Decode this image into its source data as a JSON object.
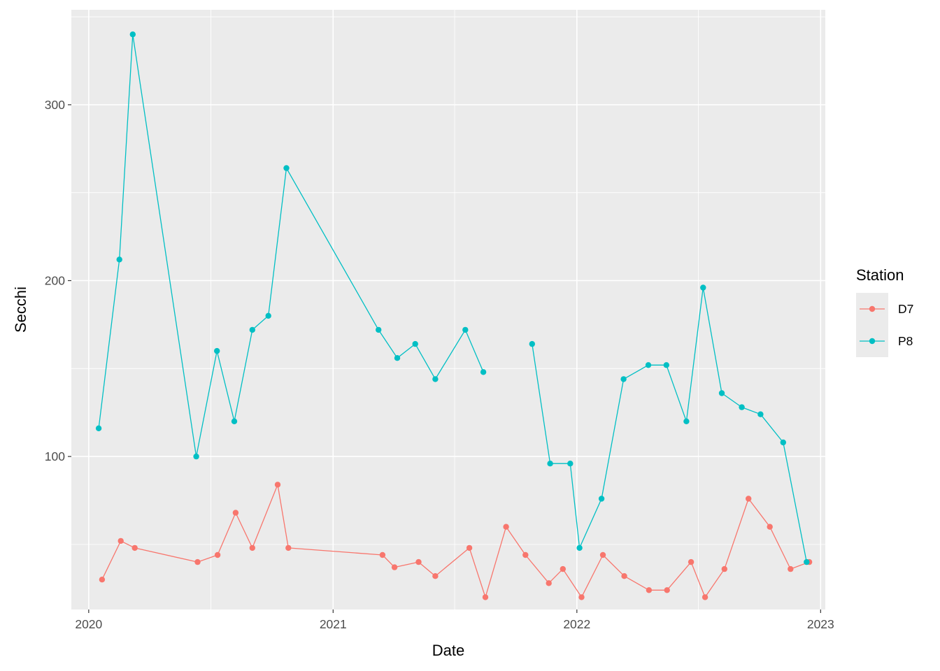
{
  "chart_data": {
    "type": "line",
    "title": "",
    "xlabel": "Date",
    "ylabel": "Secchi",
    "x_ticks": [
      "2020",
      "2021",
      "2022",
      "2023"
    ],
    "y_ticks": [
      100,
      200,
      300
    ],
    "xlim": [
      "2019-12-06",
      "2023-01-08"
    ],
    "ylim": [
      13,
      354
    ],
    "grid": true,
    "legend": {
      "title": "Station",
      "position": "right"
    },
    "series": [
      {
        "name": "D7",
        "color": "#F8766D",
        "points": [
          [
            "2020-01-21",
            30
          ],
          [
            "2020-02-18",
            52
          ],
          [
            "2020-03-10",
            48
          ],
          [
            "2020-06-12",
            40
          ],
          [
            "2020-07-12",
            44
          ],
          [
            "2020-08-08",
            68
          ],
          [
            "2020-09-02",
            48
          ],
          [
            "2020-10-10",
            84
          ],
          [
            "2020-10-26",
            48
          ],
          [
            "2021-03-16",
            44
          ],
          [
            "2021-04-03",
            37
          ],
          [
            "2021-05-09",
            40
          ],
          [
            "2021-06-03",
            32
          ],
          [
            "2021-07-24",
            48
          ],
          [
            "2021-08-17",
            20
          ],
          [
            "2021-09-17",
            60
          ],
          [
            "2021-10-16",
            44
          ],
          [
            "2021-11-20",
            28
          ],
          [
            "2021-12-11",
            36
          ],
          [
            "2022-01-08",
            20
          ],
          [
            "2022-02-09",
            44
          ],
          [
            "2022-03-13",
            32
          ],
          [
            "2022-04-19",
            24
          ],
          [
            "2022-05-16",
            24
          ],
          [
            "2022-06-21",
            40
          ],
          [
            "2022-07-12",
            20
          ],
          [
            "2022-08-10",
            36
          ],
          [
            "2022-09-15",
            76
          ],
          [
            "2022-10-17",
            60
          ],
          [
            "2022-11-17",
            36
          ],
          [
            "2022-12-15",
            40
          ]
        ]
      },
      {
        "name": "P8",
        "color": "#00BFC4",
        "points": [
          [
            "2020-01-16",
            116
          ],
          [
            "2020-02-16",
            212
          ],
          [
            "2020-03-07",
            340
          ],
          [
            "2020-06-10",
            100
          ],
          [
            "2020-07-11",
            160
          ],
          [
            "2020-08-06",
            120
          ],
          [
            "2020-09-02",
            172
          ],
          [
            "2020-09-26",
            180
          ],
          [
            "2020-10-23",
            264
          ],
          [
            "2021-03-10",
            172
          ],
          [
            "2021-04-07",
            156
          ],
          [
            "2021-05-04",
            164
          ],
          [
            "2021-06-03",
            144
          ],
          [
            "2021-07-18",
            172
          ],
          [
            "2021-08-14",
            148
          ],
          [
            "2021-10-26",
            164
          ],
          [
            "2021-11-22",
            96
          ],
          [
            "2021-12-22",
            96
          ],
          [
            "2022-01-05",
            48
          ],
          [
            "2022-02-07",
            76
          ],
          [
            "2022-03-12",
            144
          ],
          [
            "2022-04-18",
            152
          ],
          [
            "2022-05-15",
            152
          ],
          [
            "2022-06-14",
            120
          ],
          [
            "2022-07-09",
            196
          ],
          [
            "2022-08-06",
            136
          ],
          [
            "2022-09-05",
            128
          ],
          [
            "2022-10-03",
            124
          ],
          [
            "2022-11-06",
            108
          ],
          [
            "2022-12-11",
            40
          ]
        ],
        "gap_after_index": 14
      }
    ]
  }
}
